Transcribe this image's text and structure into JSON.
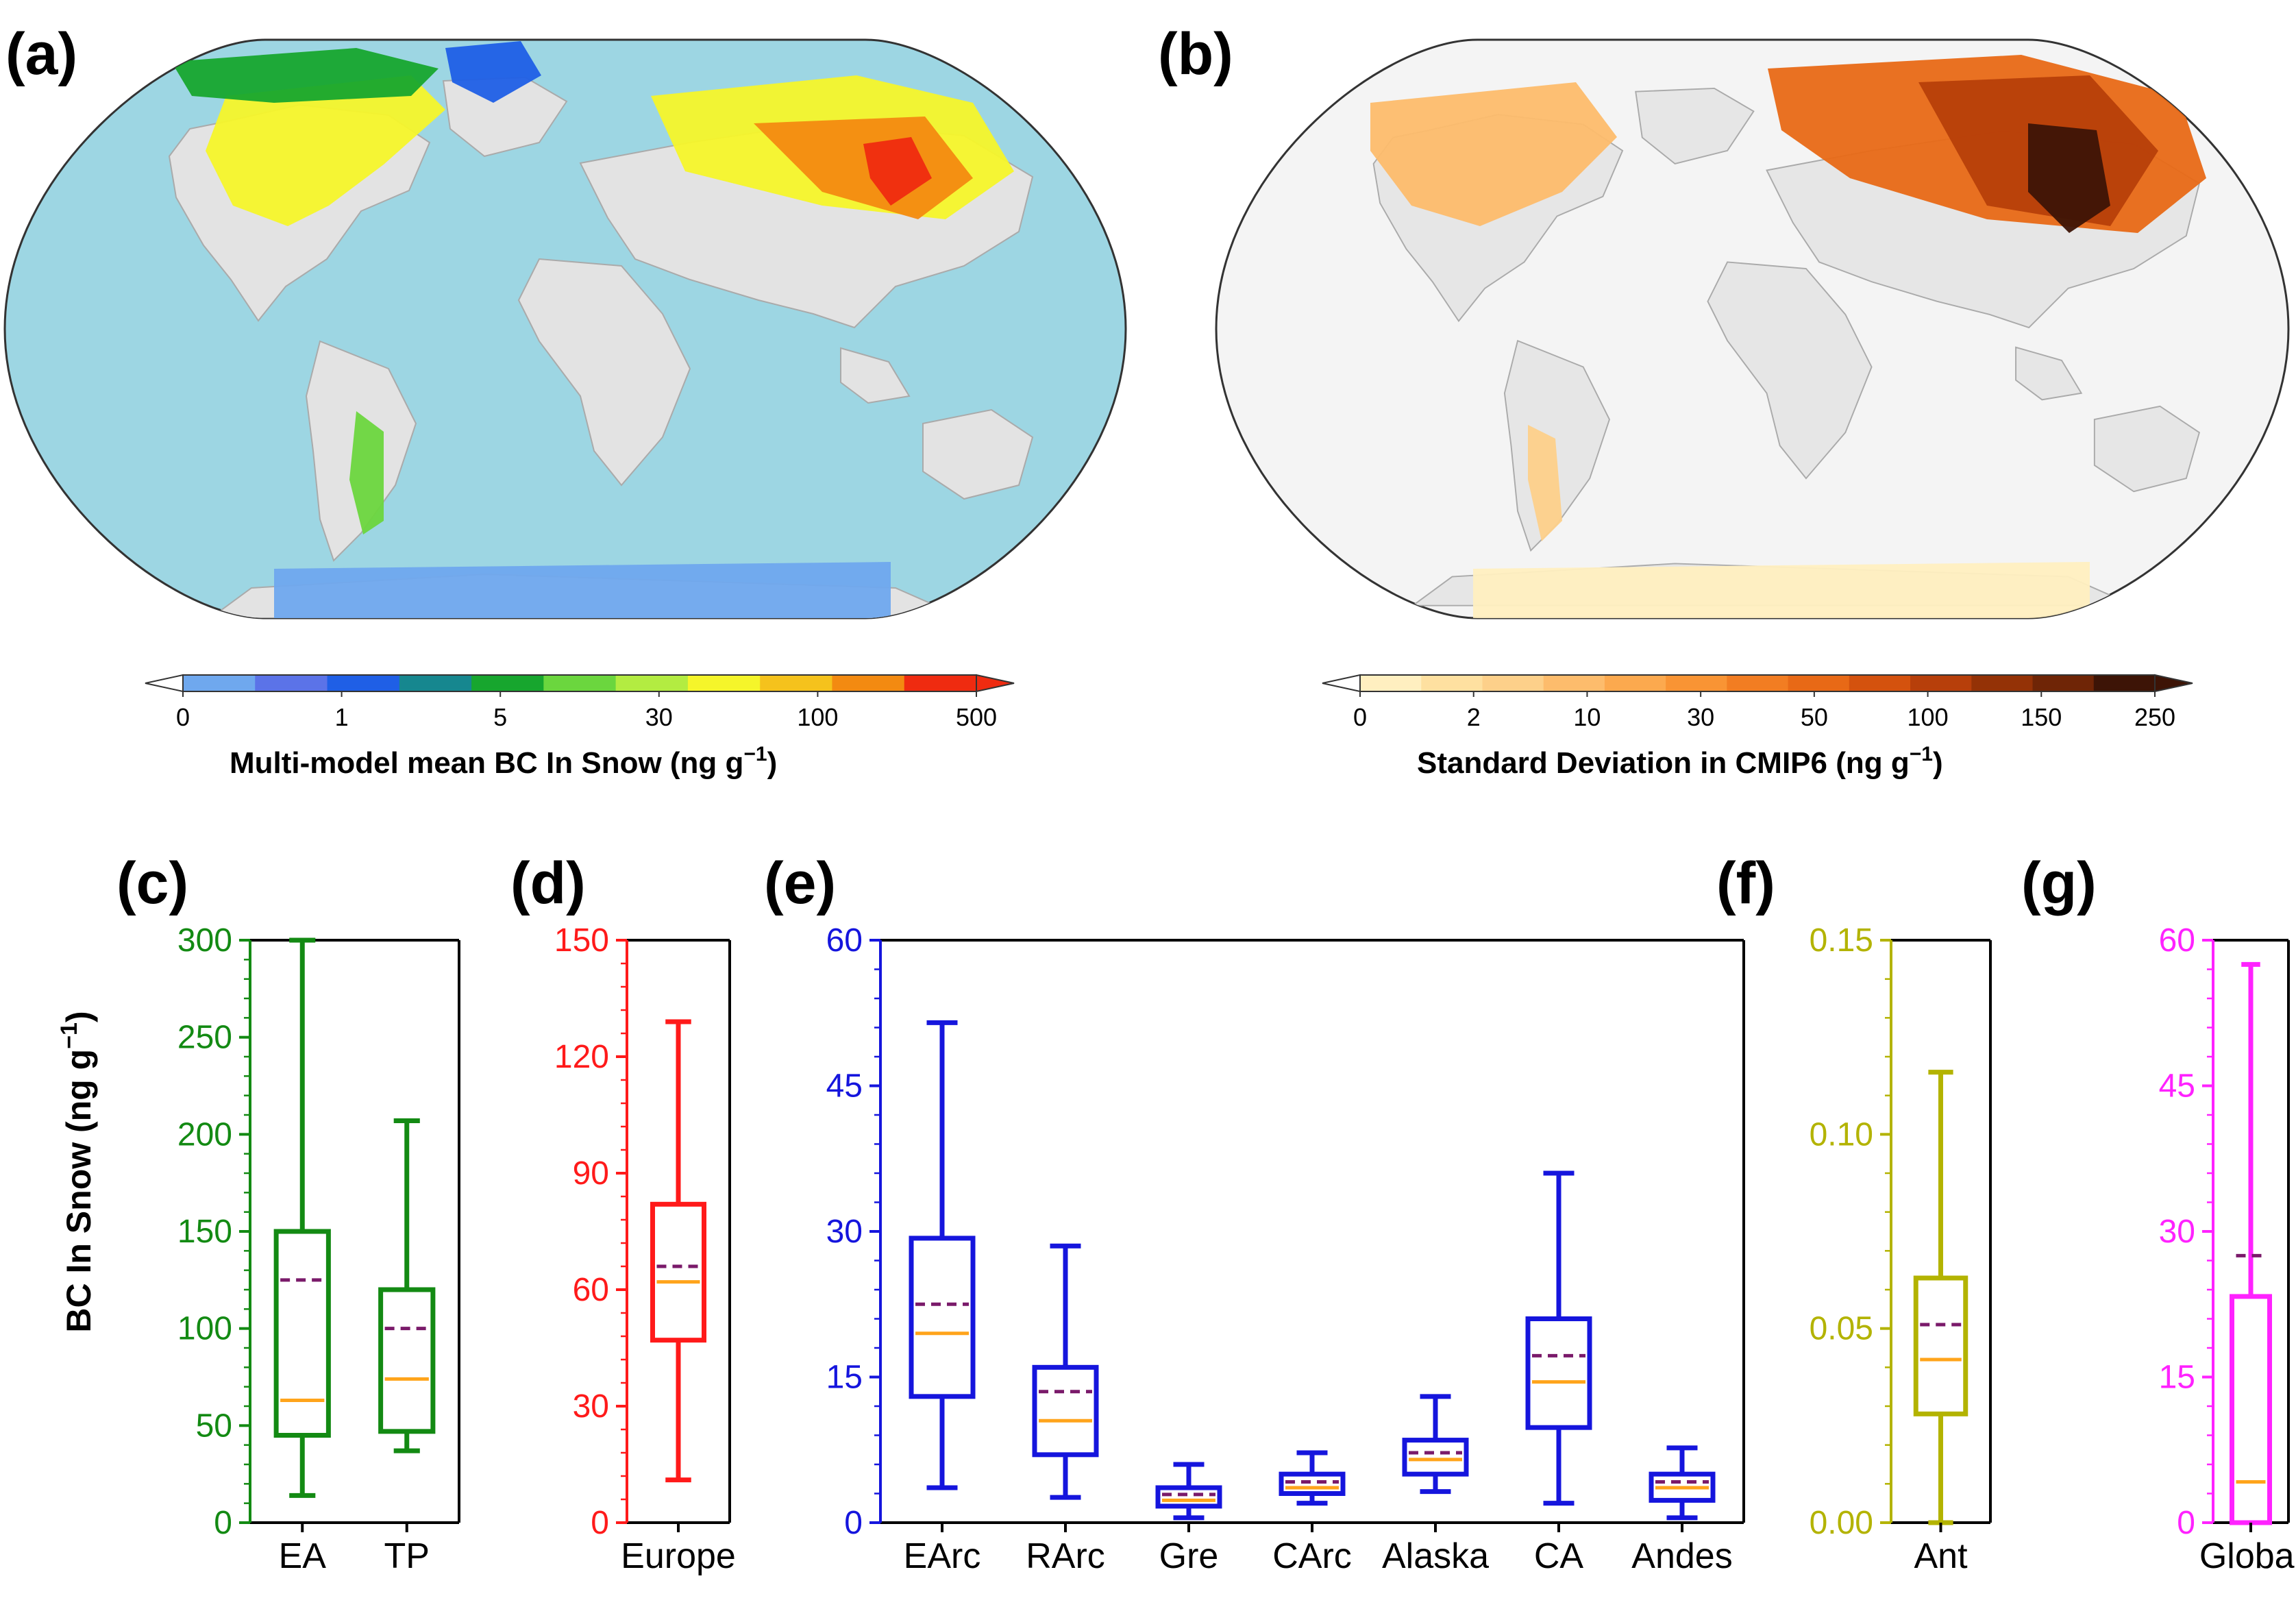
{
  "panel_labels": {
    "a": "(a)",
    "b": "(b)",
    "c": "(c)",
    "d": "(d)",
    "e": "(e)",
    "f": "(f)",
    "g": "(g)"
  },
  "maps": {
    "a": {
      "colorbar_ticks": [
        "0",
        "1",
        "5",
        "30",
        "100",
        "500"
      ],
      "colorbar_label": "Multi-model mean BC In Snow (ng g",
      "colorbar_unit_sup": "−1",
      "ocean_color": "#9dd6e3",
      "land_color": "#e3e3e3",
      "colors": [
        "#6fa8ee",
        "#5b73e8",
        "#1f5fe6",
        "#16878f",
        "#17a62e",
        "#6bd63e",
        "#b3ec41",
        "#f5f52a",
        "#f5c21c",
        "#f38a11",
        "#ef2b10"
      ]
    },
    "b": {
      "colorbar_ticks": [
        "0",
        "2",
        "10",
        "30",
        "50",
        "100",
        "150",
        "250"
      ],
      "colorbar_label": "Standard Deviation in CMIP6 (ng g",
      "colorbar_unit_sup": "−1",
      "ocean_color": "#f4f4f4",
      "land_color": "#e6e6e6",
      "colors": [
        "#ffefc0",
        "#fee0a0",
        "#fdd08a",
        "#fdbc6c",
        "#fca94e",
        "#f99434",
        "#f27d22",
        "#e86916",
        "#d4520e",
        "#b73f0a",
        "#943206",
        "#6f2506",
        "#3d1406"
      ]
    }
  },
  "y_axis_title": "BC In Snow (ng g",
  "y_axis_title_sup": "−1",
  "chart_data": [
    {
      "panel": "c",
      "type": "box",
      "color": "#138a13",
      "ylim": [
        0,
        300
      ],
      "yticks": [
        0,
        50,
        100,
        150,
        200,
        250,
        300
      ],
      "categories": [
        "EA",
        "TP"
      ],
      "boxes": [
        {
          "min": 14,
          "q1": 45,
          "median": 63,
          "q3": 150,
          "max": 300,
          "mean": 125
        },
        {
          "min": 37,
          "q1": 47,
          "median": 74,
          "q3": 120,
          "max": 207,
          "mean": 100
        }
      ]
    },
    {
      "panel": "d",
      "type": "box",
      "color": "#ff1a1a",
      "ylim": [
        0,
        150
      ],
      "yticks": [
        0,
        30,
        60,
        90,
        120,
        150
      ],
      "categories": [
        "Europe"
      ],
      "boxes": [
        {
          "min": 11,
          "q1": 47,
          "median": 62,
          "q3": 82,
          "max": 129,
          "mean": 66
        }
      ]
    },
    {
      "panel": "e",
      "type": "box",
      "color": "#1515dd",
      "ylim": [
        0,
        60
      ],
      "yticks": [
        0,
        15,
        30,
        45,
        60
      ],
      "categories": [
        "EArc",
        "RArc",
        "Gre",
        "CArc",
        "Alaska",
        "CA",
        "Andes"
      ],
      "boxes": [
        {
          "min": 3.6,
          "q1": 13,
          "median": 19.5,
          "q3": 29.3,
          "max": 51.5,
          "mean": 22.5
        },
        {
          "min": 2.6,
          "q1": 7,
          "median": 10.5,
          "q3": 16,
          "max": 28.5,
          "mean": 13.5
        },
        {
          "min": 0.5,
          "q1": 1.7,
          "median": 2.3,
          "q3": 3.6,
          "max": 6,
          "mean": 2.9
        },
        {
          "min": 2,
          "q1": 3,
          "median": 3.6,
          "q3": 5,
          "max": 7.2,
          "mean": 4.2
        },
        {
          "min": 3.2,
          "q1": 5,
          "median": 6.5,
          "q3": 8.5,
          "max": 13,
          "mean": 7.2
        },
        {
          "min": 2,
          "q1": 9.8,
          "median": 14.5,
          "q3": 21,
          "max": 36,
          "mean": 17.2
        },
        {
          "min": 0.5,
          "q1": 2.3,
          "median": 3.6,
          "q3": 5,
          "max": 7.7,
          "mean": 4.2
        }
      ]
    },
    {
      "panel": "f",
      "type": "box",
      "color": "#b3b300",
      "ylim": [
        0,
        0.15
      ],
      "yticks": [
        0.0,
        0.05,
        0.1,
        0.15
      ],
      "ytick_labels": [
        "0.00",
        "0.05",
        "0.10",
        "0.15"
      ],
      "categories": [
        "Ant"
      ],
      "boxes": [
        {
          "min": 0,
          "q1": 0.028,
          "median": 0.042,
          "q3": 0.063,
          "max": 0.116,
          "mean": 0.051
        }
      ]
    },
    {
      "panel": "g",
      "type": "box",
      "color": "#ff22ff",
      "ylim": [
        0,
        60
      ],
      "yticks": [
        0,
        15,
        30,
        45,
        60
      ],
      "categories": [
        "Global"
      ],
      "boxes": [
        {
          "min": 0,
          "q1": 0,
          "median": 4.2,
          "q3": 23.3,
          "max": 57.5,
          "mean": 27.5
        }
      ]
    }
  ],
  "styles": {
    "median_color": "#ffa41b",
    "mean_color": "#7a1a6a"
  }
}
